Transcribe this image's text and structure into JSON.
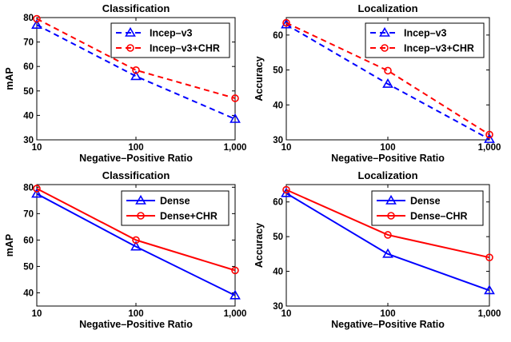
{
  "chart_data": [
    {
      "type": "line",
      "title": "Classification",
      "xlabel": "Negative–Positive Ratio",
      "ylabel": "mAP",
      "categories": [
        "10",
        "100",
        "1,000"
      ],
      "yticks": [
        30,
        40,
        50,
        60,
        70,
        80
      ],
      "ylim": [
        30,
        80
      ],
      "grid": false,
      "legend": "top-right",
      "series": [
        {
          "name": "Incep–v3",
          "values": [
            77,
            56,
            38.5
          ],
          "color": "#0000ff",
          "dash": true,
          "marker": "triangle"
        },
        {
          "name": "Incep–v3+CHR",
          "values": [
            79.5,
            58.5,
            47
          ],
          "color": "#ff0000",
          "dash": true,
          "marker": "circle"
        }
      ]
    },
    {
      "type": "line",
      "title": "Localization",
      "xlabel": "Negative–Positive Ratio",
      "ylabel": "Accuracy",
      "categories": [
        "10",
        "100",
        "1,000"
      ],
      "yticks": [
        30,
        40,
        50,
        60
      ],
      "ylim": [
        30,
        65
      ],
      "grid": false,
      "legend": "top-right",
      "series": [
        {
          "name": "Incep–v3",
          "values": [
            63,
            46,
            30.2
          ],
          "color": "#0000ff",
          "dash": true,
          "marker": "triangle"
        },
        {
          "name": "Incep–v3+CHR",
          "values": [
            63.5,
            49.8,
            31.5
          ],
          "color": "#ff0000",
          "dash": true,
          "marker": "circle"
        }
      ]
    },
    {
      "type": "line",
      "title": "Classification",
      "xlabel": "Negative–Positive Ratio",
      "ylabel": "mAP",
      "categories": [
        "10",
        "100",
        "1,000"
      ],
      "yticks": [
        40,
        50,
        60,
        70,
        80
      ],
      "ylim": [
        35,
        81
      ],
      "grid": false,
      "legend": "top-right",
      "series": [
        {
          "name": "Dense",
          "values": [
            77.5,
            57.5,
            39
          ],
          "color": "#0000ff",
          "dash": false,
          "marker": "triangle"
        },
        {
          "name": "Dense+CHR",
          "values": [
            79.5,
            60,
            48.5
          ],
          "color": "#ff0000",
          "dash": false,
          "marker": "circle"
        }
      ]
    },
    {
      "type": "line",
      "title": "Localization",
      "xlabel": "Negative–Positive Ratio",
      "ylabel": "Accuracy",
      "categories": [
        "10",
        "100",
        "1,000"
      ],
      "yticks": [
        30,
        40,
        50,
        60
      ],
      "ylim": [
        30,
        65
      ],
      "grid": false,
      "legend": "top-right",
      "series": [
        {
          "name": "Dense",
          "values": [
            62.5,
            45,
            34.5
          ],
          "color": "#0000ff",
          "dash": false,
          "marker": "triangle"
        },
        {
          "name": "Dense–CHR",
          "values": [
            63.5,
            50.5,
            44
          ],
          "color": "#ff0000",
          "dash": false,
          "marker": "circle"
        }
      ]
    }
  ]
}
